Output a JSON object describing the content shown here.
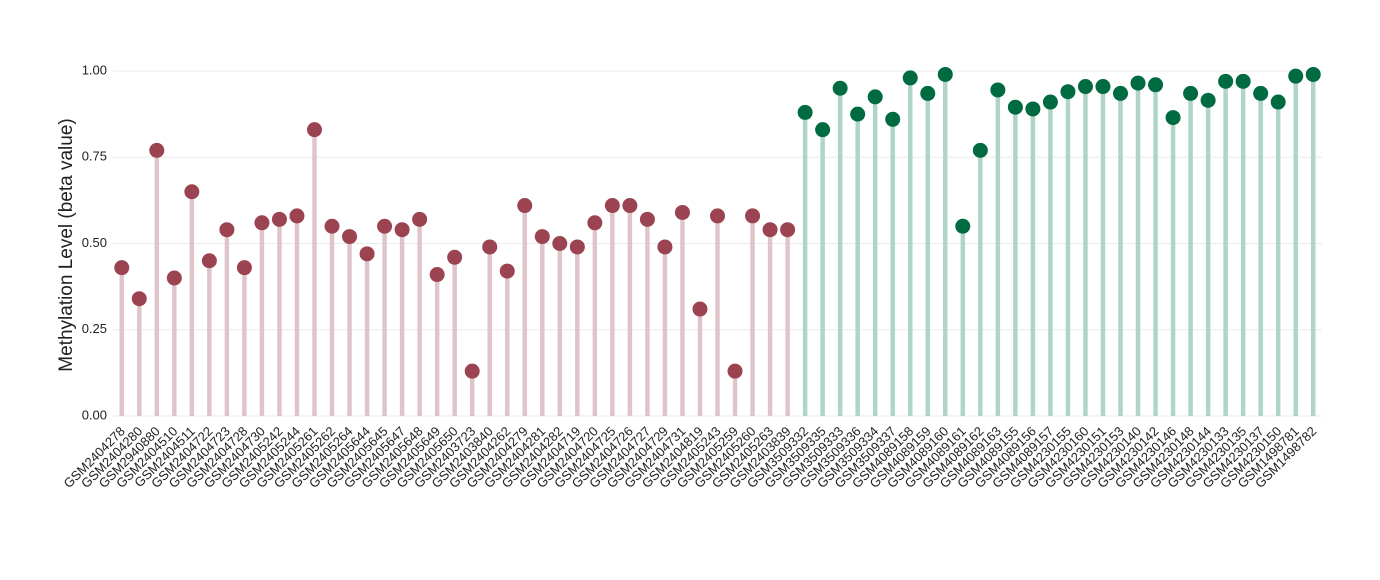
{
  "chart_data": {
    "type": "lollipop",
    "y_label": "Methylation Level (beta value)",
    "ylim": [
      0,
      1.0
    ],
    "yticks": [
      {
        "value": 0,
        "label": "0.00"
      },
      {
        "value": 0.25,
        "label": "0.25"
      },
      {
        "value": 0.5,
        "label": "0.50"
      },
      {
        "value": 0.75,
        "label": "0.75"
      },
      {
        "value": 1.0,
        "label": "1.00"
      }
    ],
    "grid": true,
    "categories": [
      "GSM2404278",
      "GSM2404280",
      "GSM2940880",
      "GSM2404510",
      "GSM2404511",
      "GSM2404722",
      "GSM2404723",
      "GSM2404728",
      "GSM2404730",
      "GSM2405242",
      "GSM2405244",
      "GSM2405261",
      "GSM2405262",
      "GSM2405264",
      "GSM2405644",
      "GSM2405645",
      "GSM2405647",
      "GSM2405648",
      "GSM2405649",
      "GSM2405650",
      "GSM2403723",
      "GSM2403840",
      "GSM2404262",
      "GSM2404279",
      "GSM2404281",
      "GSM2404282",
      "GSM2404719",
      "GSM2404720",
      "GSM2404725",
      "GSM2404726",
      "GSM2404727",
      "GSM2404729",
      "GSM2404731",
      "GSM2404819",
      "GSM2405243",
      "GSM2405259",
      "GSM2405260",
      "GSM2405263",
      "GSM2403839",
      "GSM3509332",
      "GSM3509335",
      "GSM3509333",
      "GSM3509336",
      "GSM3509334",
      "GSM3509337",
      "GSM4089158",
      "GSM4089159",
      "GSM4089160",
      "GSM4089161",
      "GSM4089162",
      "GSM4089163",
      "GSM4089155",
      "GSM4089156",
      "GSM4089157",
      "GSM4230155",
      "GSM4230160",
      "GSM4230151",
      "GSM4230153",
      "GSM4230140",
      "GSM4230142",
      "GSM4230146",
      "GSM4230148",
      "GSM4230144",
      "GSM4230133",
      "GSM4230135",
      "GSM4230137",
      "GSM4230150",
      "GSM1498781",
      "GSM1498782"
    ],
    "series": [
      {
        "color": "#9b4350",
        "stem_color": "#dfc5ca",
        "values": [
          0.43,
          0.34,
          0.77,
          0.4,
          0.65,
          0.45,
          0.54,
          0.43,
          0.56,
          0.57,
          0.58,
          0.83,
          0.55,
          0.52,
          0.47,
          0.55,
          0.54,
          0.57,
          0.41,
          0.46,
          0.13,
          0.49,
          0.42,
          0.61,
          0.52,
          0.5,
          0.49,
          0.56,
          0.61,
          0.61,
          0.57,
          0.49,
          0.59,
          0.31,
          0.58,
          0.13,
          0.58,
          0.54,
          0.54,
          null,
          null,
          null,
          null,
          null,
          null,
          null,
          null,
          null,
          null,
          null,
          null,
          null,
          null,
          null,
          null,
          null,
          null,
          null,
          null,
          null,
          null,
          null,
          null,
          null,
          null,
          null,
          null,
          null,
          null
        ]
      },
      {
        "color": "#006a40",
        "stem_color": "#b0d4c8",
        "values": [
          null,
          null,
          null,
          null,
          null,
          null,
          null,
          null,
          null,
          null,
          null,
          null,
          null,
          null,
          null,
          null,
          null,
          null,
          null,
          null,
          null,
          null,
          null,
          null,
          null,
          null,
          null,
          null,
          null,
          null,
          null,
          null,
          null,
          null,
          null,
          null,
          null,
          null,
          null,
          0.88,
          0.83,
          0.95,
          0.875,
          0.925,
          0.86,
          0.98,
          0.935,
          0.99,
          0.55,
          0.77,
          0.945,
          0.895,
          0.89,
          0.91,
          0.94,
          0.955,
          0.955,
          0.935,
          0.965,
          0.96,
          0.865,
          0.935,
          0.915,
          0.97,
          0.97,
          0.935,
          0.91,
          0.985,
          0.99
        ]
      }
    ]
  }
}
